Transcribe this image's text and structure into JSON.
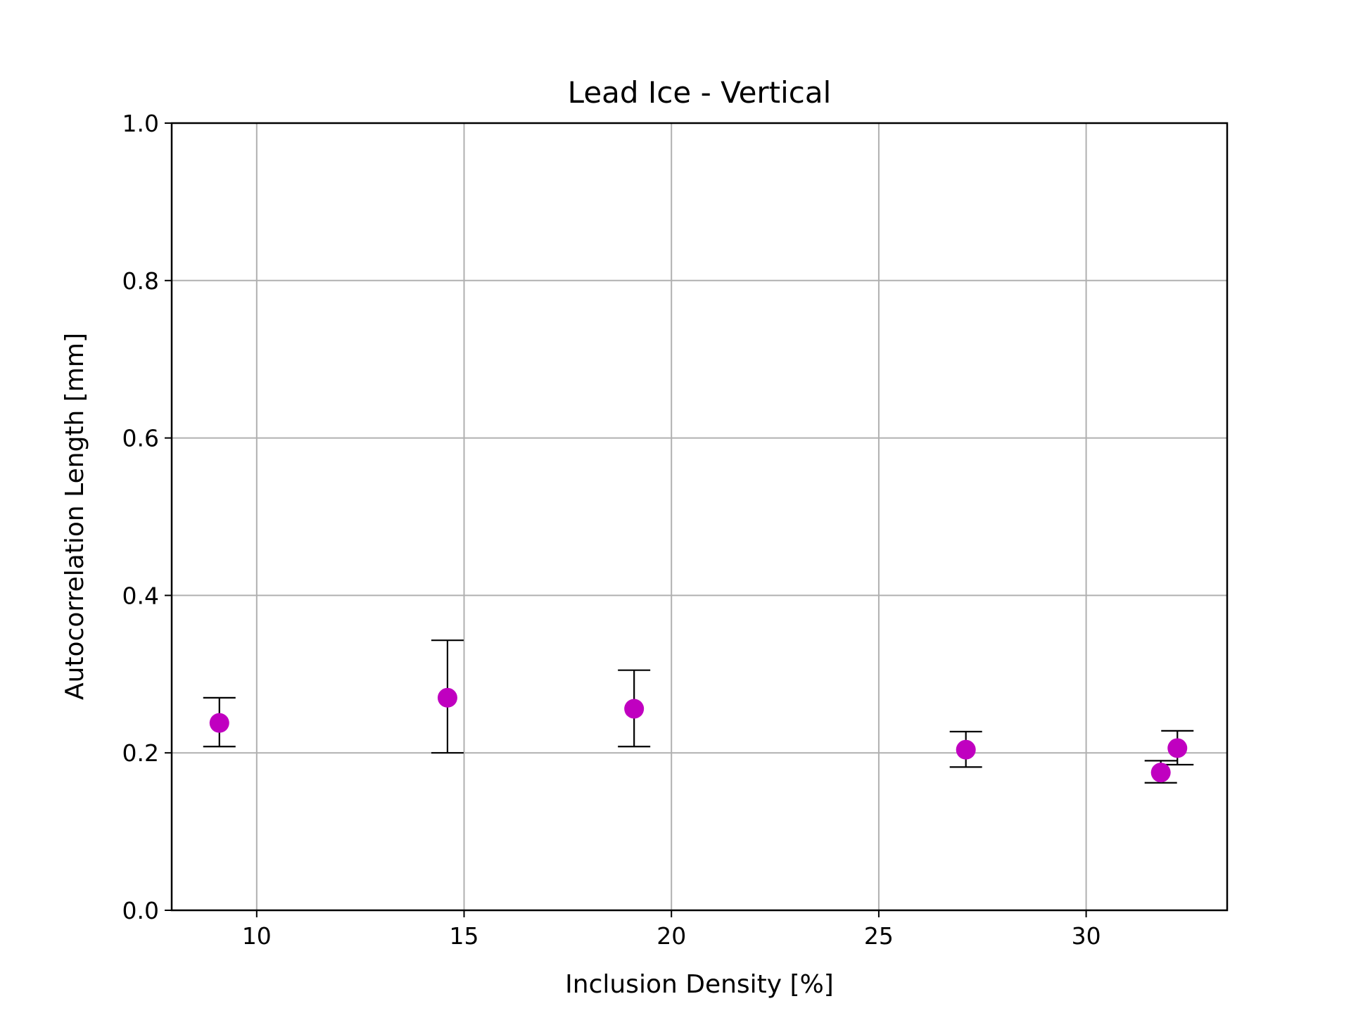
{
  "chart_data": {
    "type": "scatter",
    "title": "Lead Ice - Vertical",
    "xlabel": "Inclusion Density [%]",
    "ylabel": "Autocorrelation Length [mm]",
    "xlim": [
      7.95,
      33.4
    ],
    "ylim": [
      0.0,
      1.0
    ],
    "xticks": [
      10,
      15,
      20,
      25,
      30
    ],
    "yticks": [
      0.0,
      0.2,
      0.4,
      0.6,
      0.8,
      1.0
    ],
    "xtick_labels": [
      "10",
      "15",
      "20",
      "25",
      "30"
    ],
    "ytick_labels": [
      "0.0",
      "0.2",
      "0.4",
      "0.6",
      "0.8",
      "1.0"
    ],
    "grid": true,
    "marker_color": "#c000c0",
    "errorbar_color": "#000000",
    "grid_color": "#b0b0b0",
    "points": [
      {
        "x": 9.1,
        "y": 0.238,
        "y_low": 0.208,
        "y_high": 0.27
      },
      {
        "x": 14.6,
        "y": 0.27,
        "y_low": 0.2,
        "y_high": 0.343
      },
      {
        "x": 19.1,
        "y": 0.256,
        "y_low": 0.208,
        "y_high": 0.305
      },
      {
        "x": 27.1,
        "y": 0.204,
        "y_low": 0.182,
        "y_high": 0.227
      },
      {
        "x": 31.8,
        "y": 0.175,
        "y_low": 0.162,
        "y_high": 0.19
      },
      {
        "x": 32.2,
        "y": 0.206,
        "y_low": 0.185,
        "y_high": 0.228
      }
    ]
  }
}
